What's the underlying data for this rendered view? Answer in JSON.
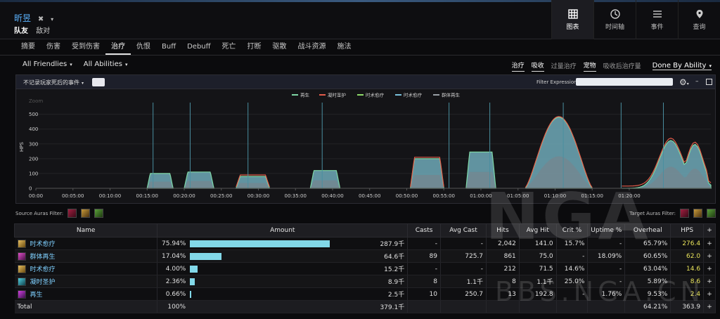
{
  "header": {
    "player_name": "昕昱",
    "close_glyph": "✖",
    "caret": "▾",
    "team_tabs": [
      "队友",
      "敌对"
    ],
    "views": [
      {
        "label": "图表",
        "icon": "grid-icon",
        "active": true
      },
      {
        "label": "时间轴",
        "icon": "clock-icon",
        "active": false
      },
      {
        "label": "事件",
        "icon": "list-icon",
        "active": false
      },
      {
        "label": "查询",
        "icon": "map-pin-icon",
        "active": false
      }
    ]
  },
  "nav": {
    "tabs": [
      "摘要",
      "伤害",
      "受到伤害",
      "治疗",
      "仇恨",
      "Buff",
      "Debuff",
      "死亡",
      "打断",
      "驱散",
      "战斗资源",
      "施法"
    ],
    "active_index": 3
  },
  "filters": {
    "friendlies": "All Friendlies",
    "abilities": "All Abilities",
    "modes": [
      {
        "label": "治疗",
        "on": true
      },
      {
        "label": "吸收",
        "on": true
      },
      {
        "label": "过量治疗",
        "on": false
      },
      {
        "label": "宠物",
        "on": true
      },
      {
        "label": "吸收后治疗量",
        "on": false
      }
    ],
    "done_by": "Done By Ability"
  },
  "chart_panel": {
    "dead_events": "不记录玩家死后的事件",
    "filter_expression_label": "Filter Expression:",
    "filter_expression_value": "",
    "minimize": "–"
  },
  "chart_data": {
    "type": "area",
    "ylabel": "HPS",
    "zoom_label": "Zoom",
    "ylim": [
      0,
      560
    ],
    "yticks": [
      0,
      100,
      200,
      300,
      400,
      500
    ],
    "xlim_seconds": [
      0,
      5460
    ],
    "xticks": [
      "00:00",
      "00:05:00",
      "00:10:00",
      "00:15:00",
      "00:20:00",
      "00:25:00",
      "00:30:00",
      "00:35:00",
      "00:40:00",
      "00:45:00",
      "00:50:00",
      "00:55:00",
      "01:00:00",
      "01:05:00",
      "01:10:00",
      "01:15:00",
      "01:20:00"
    ],
    "markers_seconds": [
      948,
      1248,
      1716,
      2316,
      3342,
      3672,
      4266,
      4734,
      5076
    ],
    "series": [
      {
        "name": "再生",
        "color": "#7ed6a5"
      },
      {
        "name": "凝时圣护",
        "color": "#e25b4a"
      },
      {
        "name": "时术愈疗",
        "color": "#8edb6a"
      },
      {
        "name": "时术愈疗",
        "color": "#79c1dc"
      },
      {
        "name": "群体再生",
        "color": "#9aa0a6"
      }
    ],
    "bursts": [
      {
        "start_s": 900,
        "end_s": 1110,
        "peak": 100,
        "red": 0,
        "shape": "flat"
      },
      {
        "start_s": 1200,
        "end_s": 1440,
        "peak": 110,
        "red": 0,
        "shape": "flat"
      },
      {
        "start_s": 1620,
        "end_s": 1890,
        "peak": 80,
        "red": 10,
        "shape": "flat"
      },
      {
        "start_s": 2220,
        "end_s": 2460,
        "peak": 120,
        "red": 0,
        "shape": "flat"
      },
      {
        "start_s": 3030,
        "end_s": 3300,
        "peak": 200,
        "red": 10,
        "shape": "flat"
      },
      {
        "start_s": 3480,
        "end_s": 3720,
        "peak": 245,
        "red": 0,
        "shape": "flat"
      },
      {
        "start_s": 3960,
        "end_s": 4500,
        "peak": 480,
        "red": 5,
        "shape": "peak"
      },
      {
        "start_s": 4740,
        "end_s": 5460,
        "peak": 330,
        "red": 15,
        "shape": "double"
      }
    ]
  },
  "auras": {
    "source_label": "Source Auras Filter:",
    "target_label": "Target Auras Filter:",
    "source_icons": [
      "aura-red-icon",
      "aura-gold-icon",
      "aura-green-icon"
    ],
    "target_icons": [
      "aura-red-icon",
      "aura-gold-icon",
      "aura-green-icon"
    ]
  },
  "table": {
    "headers": [
      "Name",
      "Amount",
      "Casts",
      "Avg Cast",
      "Hits",
      "Avg Hit",
      "Crit %",
      "Uptime %",
      "Overheal",
      "HPS",
      "+"
    ],
    "rows": [
      {
        "name": "时术愈疗",
        "icon": "chrono-heal-icon",
        "pct": "75.94%",
        "bar": 0.7594,
        "amount": "287.9千",
        "casts": "-",
        "avg_cast": "-",
        "hits": "2,042",
        "avg_hit": "141.0",
        "crit": "15.7%",
        "uptime": "-",
        "overheal": "65.79%",
        "hps": "276.4"
      },
      {
        "name": "群体再生",
        "icon": "mass-regen-icon",
        "pct": "17.04%",
        "bar": 0.1704,
        "amount": "64.6千",
        "casts": "89",
        "avg_cast": "725.7",
        "hits": "861",
        "avg_hit": "75.0",
        "crit": "-",
        "uptime": "18.09%",
        "overheal": "60.65%",
        "hps": "62.0"
      },
      {
        "name": "时术愈疗",
        "icon": "chrono-heal-icon",
        "pct": "4.00%",
        "bar": 0.04,
        "amount": "15.2千",
        "casts": "-",
        "avg_cast": "-",
        "hits": "212",
        "avg_hit": "71.5",
        "crit": "14.6%",
        "uptime": "-",
        "overheal": "63.04%",
        "hps": "14.6"
      },
      {
        "name": "凝时圣护",
        "icon": "time-ward-icon",
        "pct": "2.36%",
        "bar": 0.0236,
        "amount": "8.9千",
        "casts": "8",
        "avg_cast": "1.1千",
        "hits": "8",
        "avg_hit": "1.1千",
        "crit": "25.0%",
        "uptime": "-",
        "overheal": "5.89%",
        "hps": "8.6"
      },
      {
        "name": "再生",
        "icon": "regen-icon",
        "pct": "0.66%",
        "bar": 0.0066,
        "amount": "2.5千",
        "casts": "10",
        "avg_cast": "250.7",
        "hits": "13",
        "avg_hit": "192.8",
        "crit": "-",
        "uptime": "1.76%",
        "overheal": "9.53%",
        "hps": "2.4"
      }
    ],
    "total": {
      "label": "Total",
      "pct": "100%",
      "amount": "379.1千",
      "overheal": "64.21%",
      "hps": "363.9"
    },
    "plus": "+"
  },
  "watermark": {
    "text": "BBS.NGA.CN",
    "logo": "NGA"
  },
  "colors": {
    "accent": "#5bb3ff",
    "bar": "#82d8e8",
    "hps": "#e8e35a",
    "bg": "#0b0b0d"
  }
}
